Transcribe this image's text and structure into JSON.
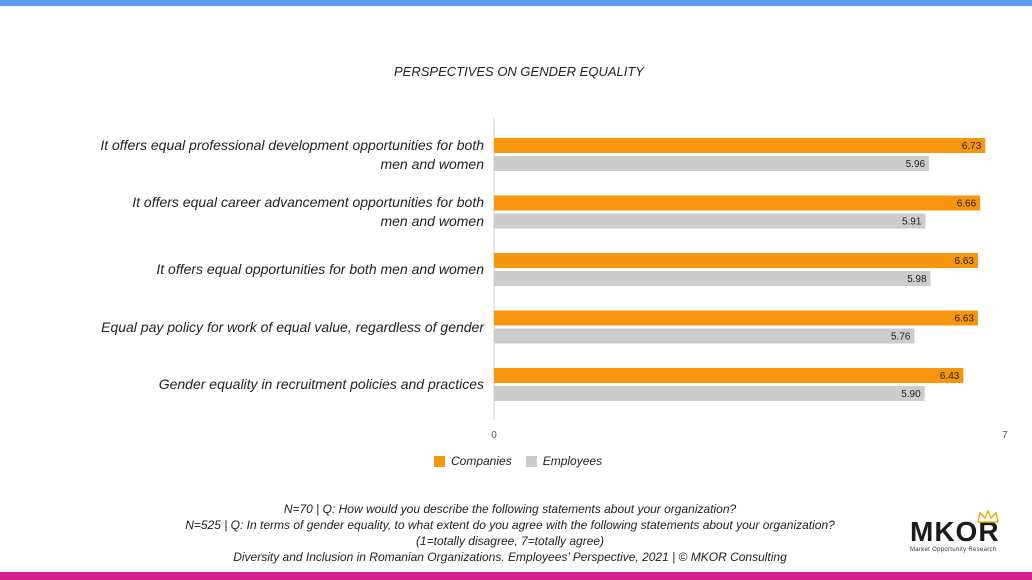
{
  "colors": {
    "top_bar": "#5b9cf0",
    "bottom_bar": "#d3218f",
    "companies": "#f7960e",
    "employees": "#cccccc",
    "axis": "#d0d0d0",
    "crown": "#f2a900"
  },
  "chart_data": {
    "type": "bar",
    "orientation": "horizontal",
    "title": "PERSPECTIVES ON GENDER EQUALITY",
    "categories": [
      [
        "It offers equal professional development opportunities for both",
        "men and women"
      ],
      [
        "It offers equal career advancement opportunities for both",
        "men and women"
      ],
      [
        "It offers equal opportunities for both men and women"
      ],
      [
        "Equal pay policy for work of equal value, regardless of gender"
      ],
      [
        "Gender equality in recruitment policies and practices"
      ]
    ],
    "series": [
      {
        "name": "Companies",
        "values": [
          6.73,
          6.66,
          6.63,
          6.63,
          6.43
        ],
        "labels": [
          "6.73",
          "6.66",
          "6.63",
          "6.63",
          "6.43"
        ]
      },
      {
        "name": "Employees",
        "values": [
          5.96,
          5.91,
          5.98,
          5.76,
          5.9
        ],
        "labels": [
          "5.96",
          "5.91",
          "5.98",
          "5.76",
          "5.90"
        ]
      }
    ],
    "xlim": [
      0,
      7
    ],
    "xticks": [
      "0",
      "7"
    ],
    "legend_position": "bottom",
    "grid": false
  },
  "footnotes": [
    "N=70 | Q: How would you describe the following statements about your organization?",
    "N=525 | Q: In terms of gender equality, to what extent do you agree with the following statements about your organization?",
    "(1=totally disagree, 7=totally agree)",
    "Diversity and Inclusion in Romanian Organizations. Employees’ Perspective, 2021 | © MKOR Consulting"
  ],
  "logo": {
    "text": "MKOR",
    "tagline": "Market Opportunity Research",
    "icon": "crown-icon"
  }
}
